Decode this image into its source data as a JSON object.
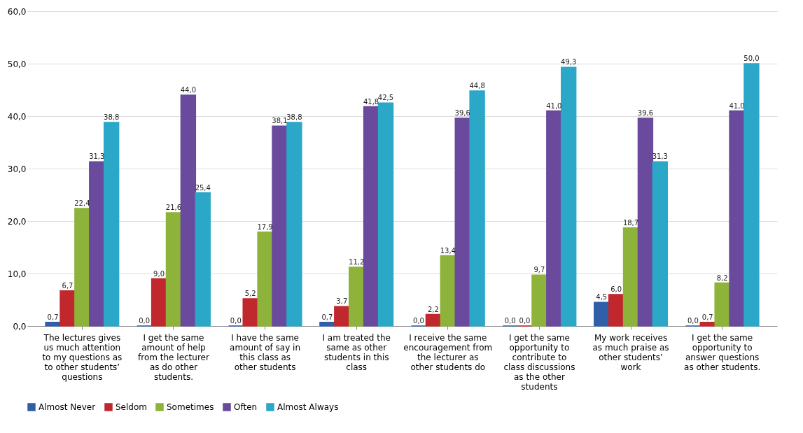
{
  "chart_data": {
    "type": "bar",
    "categories": [
      "The lectures gives us much attention to my questions as to other students’ questions",
      "I get the same amount of help from the lecturer as do other students.",
      "I have the same amount of say in this class as other students",
      "I am treated the same as other students in this class",
      "I receive the same encouragement from the lecturer as other students do",
      "I get the same opportunity to contribute to class discussions as the other students",
      "My work receives as much praise as other students’ work",
      "I get the same opportunity to answer questions as other students."
    ],
    "series": [
      {
        "name": "Almost Never",
        "color": "#2e5fa8",
        "values": [
          0.7,
          0.0,
          0.0,
          0.7,
          0.0,
          0.0,
          4.5,
          0.0
        ],
        "value_labels": [
          "0,7",
          "0,0",
          "0,0",
          "0,7",
          "0,0",
          "0,0",
          "4,5",
          "0,0"
        ]
      },
      {
        "name": "Seldom",
        "color": "#c0282d",
        "values": [
          6.7,
          9.0,
          5.2,
          3.7,
          2.2,
          0.0,
          6.0,
          0.7
        ],
        "value_labels": [
          "6,7",
          "9,0",
          "5,2",
          "3,7",
          "2,2",
          "0,0",
          "6,0",
          "0,7"
        ]
      },
      {
        "name": "Sometimes",
        "color": "#8db33a",
        "values": [
          22.4,
          21.6,
          17.9,
          11.2,
          13.4,
          9.7,
          18.7,
          8.2
        ],
        "value_labels": [
          "22,4",
          "21,6",
          "17,9",
          "11,2",
          "13,4",
          "9,7",
          "18,7",
          "8,2"
        ]
      },
      {
        "name": "Often",
        "color": "#6a4a9c",
        "values": [
          31.3,
          44.0,
          38.1,
          41.8,
          39.6,
          41.0,
          39.6,
          41.0
        ],
        "value_labels": [
          "31,3",
          "44,0",
          "38,1",
          "41,8",
          "39,6",
          "41,0",
          "39,6",
          "41,0"
        ]
      },
      {
        "name": "Almost Always",
        "color": "#2ba7c8",
        "values": [
          38.8,
          25.4,
          38.8,
          42.5,
          44.8,
          49.3,
          31.3,
          50.0
        ],
        "value_labels": [
          "38,8",
          "25,4",
          "38,8",
          "42,5",
          "44,8",
          "49,3",
          "31,3",
          "50,0"
        ]
      }
    ],
    "ylim": [
      0,
      60
    ],
    "yticks": [
      {
        "value": 0,
        "label": "0,0"
      },
      {
        "value": 10,
        "label": "10,0"
      },
      {
        "value": 20,
        "label": "20,0"
      },
      {
        "value": 30,
        "label": "30,0"
      },
      {
        "value": 40,
        "label": "40,0"
      },
      {
        "value": 50,
        "label": "50,0"
      },
      {
        "value": 60,
        "label": "60,0"
      }
    ],
    "grid": "y",
    "legend": "bottom"
  }
}
